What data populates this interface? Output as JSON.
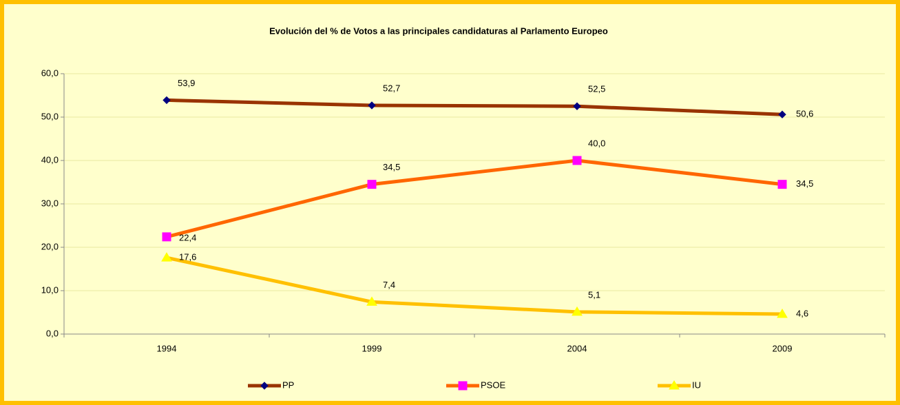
{
  "chart_data": {
    "type": "line",
    "title": "Evolución del % de Votos a las principales candidaturas al Parlamento Europeo",
    "categories": [
      "1994",
      "1999",
      "2004",
      "2009"
    ],
    "series": [
      {
        "name": "PP",
        "color": "#993300",
        "marker": "diamond",
        "marker_color": "#000080",
        "values": [
          53.9,
          52.7,
          52.5,
          50.6
        ],
        "value_labels": [
          "53,9",
          "52,7",
          "52,5",
          "50,6"
        ]
      },
      {
        "name": "PSOE",
        "color": "#FF6600",
        "marker": "square",
        "marker_color": "#FF00FF",
        "values": [
          22.4,
          34.5,
          40.0,
          34.5
        ],
        "value_labels": [
          "22,4",
          "34,5",
          "40,0",
          "34,5"
        ]
      },
      {
        "name": "IU",
        "color": "#FFC000",
        "marker": "triangle",
        "marker_color": "#FFFF00",
        "values": [
          17.6,
          7.4,
          5.1,
          4.6
        ],
        "value_labels": [
          "17,6",
          "7,4",
          "5,1",
          "4,6"
        ]
      }
    ],
    "ylim": [
      0,
      60
    ],
    "yticks": [
      {
        "value": 0,
        "label": "0,0"
      },
      {
        "value": 10,
        "label": "10,0"
      },
      {
        "value": 20,
        "label": "20,0"
      },
      {
        "value": 30,
        "label": "30,0"
      },
      {
        "value": 40,
        "label": "40,0"
      },
      {
        "value": 50,
        "label": "50,0"
      },
      {
        "value": 60,
        "label": "60,0"
      }
    ],
    "grid": true,
    "legend": "bottom"
  }
}
